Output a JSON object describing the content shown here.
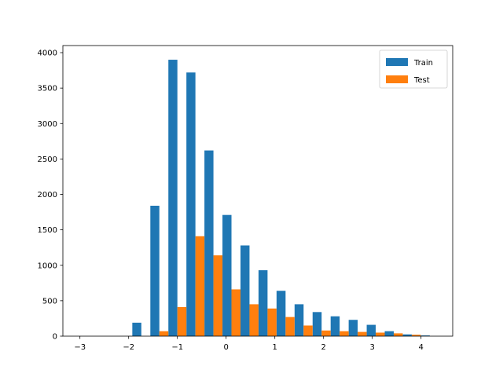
{
  "chart_data": {
    "type": "bar",
    "title": "",
    "xlabel": "",
    "ylabel": "",
    "xlim": [
      -3.35,
      4.65
    ],
    "ylim": [
      0,
      4100
    ],
    "xticks": [
      -3,
      -2,
      -1,
      0,
      1,
      2,
      3,
      4
    ],
    "xtick_labels": [
      "−3",
      "−2",
      "−1",
      "0",
      "1",
      "2",
      "3",
      "4"
    ],
    "yticks": [
      0,
      500,
      1000,
      1500,
      2000,
      2500,
      3000,
      3500,
      4000
    ],
    "grid": false,
    "legend_position": "top-right",
    "bin_centers": [
      -1.74,
      -1.37,
      -1.0,
      -0.63,
      -0.26,
      0.11,
      0.48,
      0.85,
      1.22,
      1.59,
      1.96,
      2.33,
      2.7,
      3.07,
      3.44,
      3.81,
      4.18
    ],
    "bin_width": 0.37,
    "series": [
      {
        "name": "Train",
        "color": "#1f77b4",
        "values": [
          190,
          1840,
          3900,
          3720,
          2620,
          1710,
          1280,
          930,
          640,
          450,
          340,
          280,
          230,
          160,
          70,
          25,
          10
        ]
      },
      {
        "name": "Test",
        "color": "#ff7f0e",
        "values": [
          0,
          70,
          410,
          1410,
          1140,
          660,
          450,
          390,
          270,
          150,
          80,
          70,
          60,
          50,
          40,
          20,
          0
        ]
      }
    ]
  }
}
